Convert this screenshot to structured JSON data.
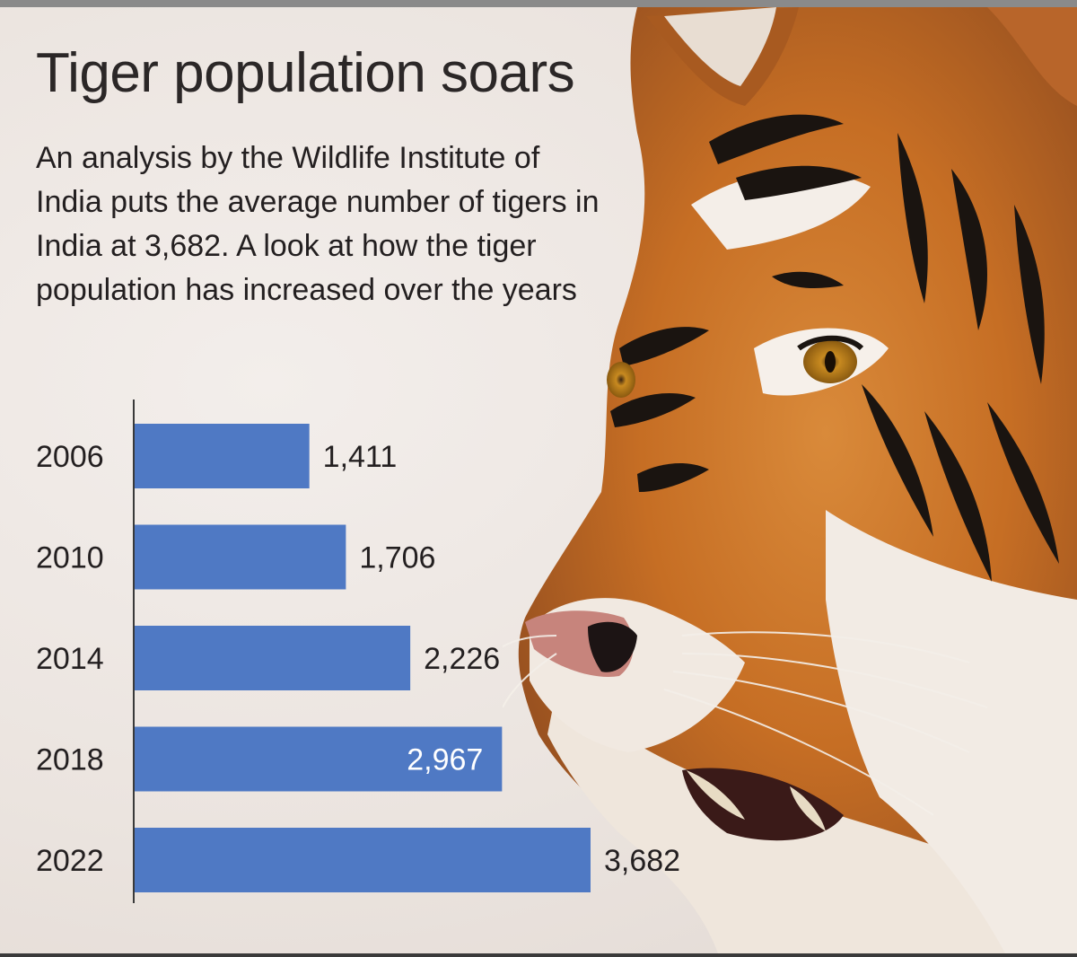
{
  "title": "Tiger population soars",
  "subtitle": "An analysis by the Wildlife Institute of India puts the average number of tigers in India at 3,682. A look at how the tiger population has increased over the years",
  "colors": {
    "bar": "#4f79c4",
    "text": "#231f20",
    "background": "#ece6e2"
  },
  "chart_data": {
    "type": "bar",
    "orientation": "horizontal",
    "categories": [
      "2006",
      "2010",
      "2014",
      "2018",
      "2022"
    ],
    "values": [
      1411,
      1706,
      2226,
      2967,
      3682
    ],
    "value_labels": [
      "1,411",
      "1,706",
      "2,226",
      "2,967",
      "3,682"
    ],
    "title": "Tiger population soars",
    "xlabel": "",
    "ylabel": "",
    "xlim": [
      0,
      3682
    ],
    "grid": false,
    "legend": "none"
  }
}
